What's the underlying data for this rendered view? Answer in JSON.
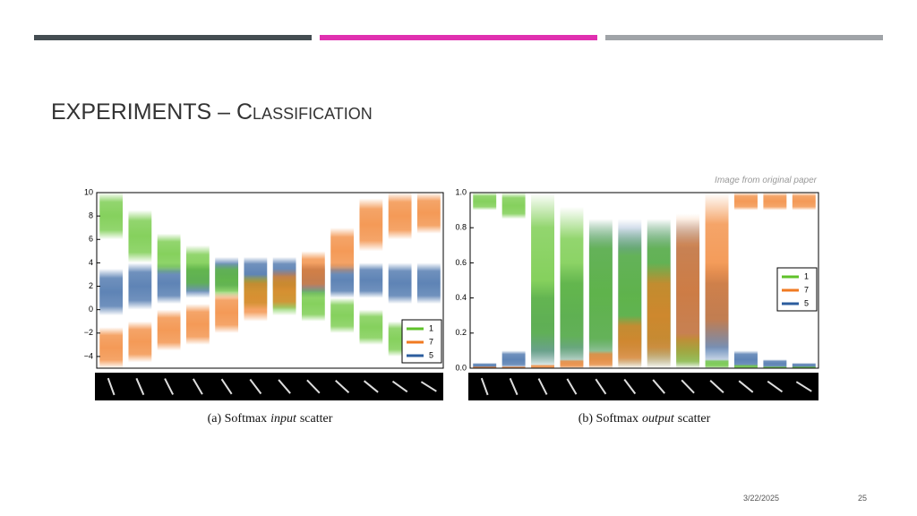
{
  "header": {
    "title": "EXPERIMENTS – Classification",
    "credit": "Image from original paper"
  },
  "footer": {
    "date": "3/22/2025",
    "page": "25"
  },
  "figures": [
    {
      "type": "band",
      "caption_prefix": "(a) Softmax",
      "caption_emph": "input",
      "caption_suffix": "scatter",
      "ylim": [
        -5,
        10
      ],
      "yticks": [
        10,
        8,
        6,
        4,
        2,
        0,
        {
          "value": -2,
          "label": "−2"
        },
        {
          "value": -4,
          "label": "−4"
        }
      ],
      "legend": "lower right",
      "series": [
        {
          "name": "5",
          "color": "#2c5d9e",
          "ranges": [
            [
              -0.5,
              3.5
            ],
            [
              0,
              4
            ],
            [
              0.5,
              4
            ],
            [
              1,
              4
            ],
            [
              1.5,
              4.5
            ],
            [
              1.5,
              4.5
            ],
            [
              1.5,
              4.5
            ],
            [
              1,
              4
            ],
            [
              1,
              4
            ],
            [
              1,
              4
            ],
            [
              0.5,
              4
            ],
            [
              0.5,
              4
            ]
          ]
        },
        {
          "name": "1",
          "color": "#5fc22a",
          "ranges": [
            [
              6,
              10
            ],
            [
              4,
              8.5
            ],
            [
              3,
              6.5
            ],
            [
              1.5,
              5.5
            ],
            [
              1,
              4
            ],
            [
              0,
              3
            ],
            [
              -0.5,
              3
            ],
            [
              -1,
              2
            ],
            [
              -2,
              1
            ],
            [
              -3,
              0
            ],
            [
              -4,
              -1
            ],
            [
              -4.5,
              -1.5
            ]
          ]
        },
        {
          "name": "7",
          "color": "#f07a22",
          "ranges": [
            [
              -5,
              -1.5
            ],
            [
              -4.5,
              -1
            ],
            [
              -3.5,
              0
            ],
            [
              -3,
              0.5
            ],
            [
              -2,
              1.5
            ],
            [
              -1,
              3
            ],
            [
              0,
              3.5
            ],
            [
              1.5,
              5
            ],
            [
              3,
              7
            ],
            [
              5,
              9.5
            ],
            [
              6,
              10
            ],
            [
              6.5,
              10
            ]
          ]
        }
      ]
    },
    {
      "type": "band",
      "caption_prefix": "(b) Softmax",
      "caption_emph": "output",
      "caption_suffix": "scatter",
      "ylim": [
        0,
        1
      ],
      "yticks": [
        {
          "value": 1,
          "label": "1.0"
        },
        0.8,
        0.6,
        0.4,
        0.2,
        {
          "value": 0,
          "label": "0.0"
        }
      ],
      "legend": "center right",
      "series": [
        {
          "name": "5",
          "color": "#2c5d9e",
          "ranges": [
            [
              0,
              0.03
            ],
            [
              0,
              0.1
            ],
            [
              0,
              0.5
            ],
            [
              0,
              0.6
            ],
            [
              0,
              0.85
            ],
            [
              0,
              0.85
            ],
            [
              0,
              0.85
            ],
            [
              0,
              0.85
            ],
            [
              0,
              0.6
            ],
            [
              0,
              0.1
            ],
            [
              0,
              0.05
            ],
            [
              0,
              0.03
            ]
          ]
        },
        {
          "name": "1",
          "color": "#5fc22a",
          "ranges": [
            [
              0.9,
              1
            ],
            [
              0.85,
              1
            ],
            [
              0,
              1
            ],
            [
              0,
              0.92
            ],
            [
              0,
              0.85
            ],
            [
              0,
              0.8
            ],
            [
              0,
              0.85
            ],
            [
              0,
              0.2
            ],
            [
              0,
              0.05
            ],
            [
              0,
              0.02
            ],
            [
              0,
              0.01
            ],
            [
              0,
              0.01
            ]
          ]
        },
        {
          "name": "7",
          "color": "#f07a22",
          "ranges": [
            [
              0,
              0.01
            ],
            [
              0,
              0.01
            ],
            [
              0,
              0.02
            ],
            [
              0,
              0.05
            ],
            [
              0,
              0.1
            ],
            [
              0,
              0.3
            ],
            [
              0,
              0.6
            ],
            [
              0,
              0.88
            ],
            [
              0.1,
              1
            ],
            [
              0.9,
              1
            ],
            [
              0.9,
              1
            ],
            [
              0.9,
              1
            ]
          ]
        }
      ]
    }
  ]
}
